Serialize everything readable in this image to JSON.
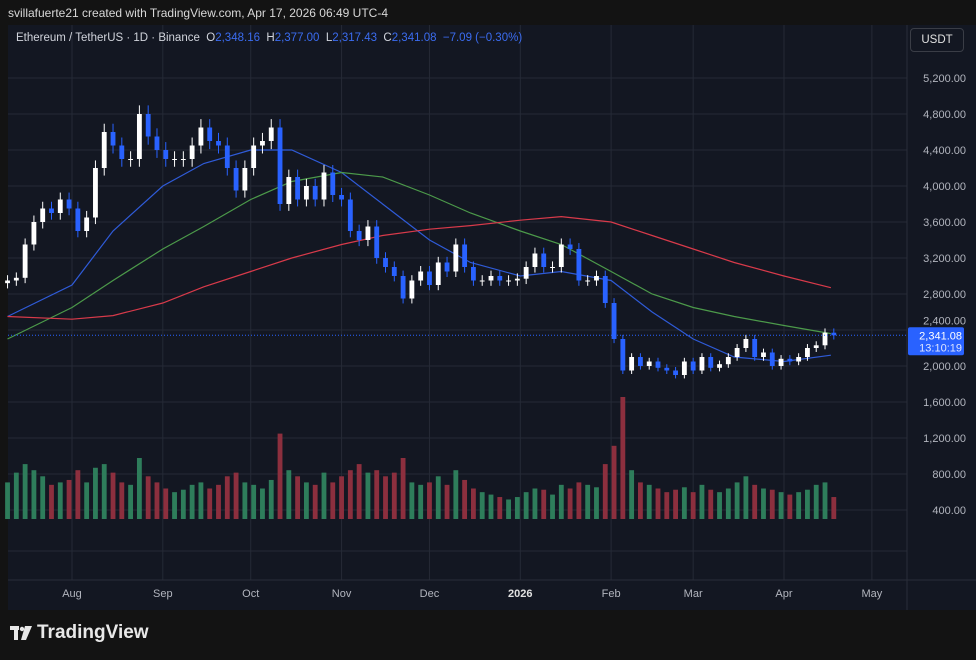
{
  "credit": "svillafuerte21 created with TradingView.com, Apr 17, 2026 06:49 UTC-4",
  "legend": {
    "symbol": "Ethereum / TetherUS · 1D · Binance",
    "o_label": "O",
    "o": "2,348.16",
    "h_label": "H",
    "h": "2,377.00",
    "l_label": "L",
    "l": "2,317.43",
    "c_label": "C",
    "c": "2,341.08",
    "change": "−7.09 (−0.30%)"
  },
  "currency_button": "USDT",
  "price_tag": {
    "price": "2,341.08",
    "countdown": "13:10:19"
  },
  "brand": "TradingView",
  "colors": {
    "up": "#ffffff",
    "down": "#2962ff",
    "ma_blue": "#2f5bd8",
    "ma_green": "#4c9a4a",
    "ma_red": "#d83a4a",
    "vol_up": "#2e7d5b",
    "vol_down": "#8c2f3e",
    "accent": "#2962ff"
  },
  "chart_data": {
    "type": "candlestick",
    "grid": true,
    "ylim": [
      400,
      5500
    ],
    "y_ticks": [
      "5,200.00",
      "4,800.00",
      "4,400.00",
      "4,000.00",
      "3,600.00",
      "3,200.00",
      "2,800.00",
      "2,400.00",
      "2,000.00",
      "1,600.00",
      "1,200.00",
      "800.00",
      "400.00"
    ],
    "y_tick_values": [
      5200,
      4800,
      4400,
      4000,
      3600,
      3200,
      2800,
      2400,
      2000,
      1600,
      1200,
      800,
      400
    ],
    "x_ticks": [
      {
        "label": "Aug",
        "date": "2025-08-01"
      },
      {
        "label": "Sep",
        "date": "2025-09-01"
      },
      {
        "label": "Oct",
        "date": "2025-10-01"
      },
      {
        "label": "Nov",
        "date": "2025-11-01"
      },
      {
        "label": "Dec",
        "date": "2025-12-01"
      },
      {
        "label": "2026",
        "date": "2026-01-01"
      },
      {
        "label": "Feb",
        "date": "2026-02-01"
      },
      {
        "label": "Mar",
        "date": "2026-03-01"
      },
      {
        "label": "Apr",
        "date": "2026-04-01"
      },
      {
        "label": "May",
        "date": "2026-05-01"
      }
    ],
    "xlim": [
      "2025-07-09",
      "2026-05-30"
    ],
    "first_date": "2025-07-10",
    "step_days": 3,
    "closes": [
      2950,
      2980,
      3350,
      3600,
      3750,
      3700,
      3850,
      3750,
      3500,
      3650,
      4200,
      4600,
      4450,
      4300,
      4300,
      4800,
      4550,
      4400,
      4300,
      4300,
      4300,
      4450,
      4650,
      4500,
      4450,
      4200,
      3950,
      4200,
      4450,
      4500,
      4650,
      3800,
      4100,
      3850,
      4000,
      3850,
      4150,
      3900,
      3850,
      3500,
      3400,
      3550,
      3200,
      3100,
      3000,
      2750,
      2950,
      3050,
      2900,
      3150,
      3050,
      3350,
      3100,
      2950,
      2950,
      3000,
      2950,
      2950,
      2970,
      3100,
      3250,
      3100,
      3100,
      3350,
      3300,
      2950,
      2950,
      3000,
      2700,
      2300,
      1950,
      2100,
      2000,
      2050,
      1980,
      1950,
      1900,
      2050,
      1950,
      2100,
      1980,
      2020,
      2100,
      2200,
      2300,
      2100,
      2150,
      2000,
      2080,
      2050,
      2100,
      2200,
      2230,
      2370,
      2341.08
    ],
    "volume_relative": [
      30,
      38,
      45,
      40,
      35,
      28,
      30,
      32,
      40,
      30,
      42,
      45,
      38,
      30,
      28,
      50,
      35,
      30,
      25,
      22,
      24,
      28,
      30,
      25,
      28,
      35,
      38,
      30,
      28,
      25,
      32,
      70,
      40,
      35,
      30,
      28,
      38,
      30,
      35,
      40,
      45,
      38,
      40,
      35,
      38,
      50,
      30,
      28,
      30,
      35,
      28,
      40,
      32,
      25,
      22,
      20,
      18,
      16,
      18,
      22,
      25,
      24,
      20,
      28,
      25,
      30,
      28,
      26,
      45,
      60,
      100,
      40,
      30,
      28,
      25,
      22,
      24,
      26,
      22,
      28,
      24,
      22,
      25,
      30,
      35,
      28,
      25,
      24,
      22,
      20,
      22,
      24,
      28,
      30,
      18
    ],
    "series": [
      {
        "label": "MA-blue",
        "dates": [
          "2025-07-10",
          "2025-08-01",
          "2025-08-15",
          "2025-09-01",
          "2025-09-15",
          "2025-10-01",
          "2025-10-15",
          "2025-11-01",
          "2025-11-15",
          "2025-12-01",
          "2025-12-15",
          "2026-01-01",
          "2026-01-15",
          "2026-02-01",
          "2026-02-15",
          "2026-03-01",
          "2026-03-15",
          "2026-04-01",
          "2026-04-17"
        ],
        "values": [
          2550,
          2900,
          3500,
          4000,
          4250,
          4400,
          4400,
          4150,
          3800,
          3400,
          3150,
          3000,
          3050,
          2950,
          2600,
          2300,
          2100,
          2050,
          2120
        ]
      },
      {
        "label": "MA-green",
        "dates": [
          "2025-07-10",
          "2025-08-01",
          "2025-08-15",
          "2025-09-01",
          "2025-09-15",
          "2025-10-01",
          "2025-10-15",
          "2025-11-01",
          "2025-11-15",
          "2025-12-01",
          "2025-12-15",
          "2026-01-01",
          "2026-01-15",
          "2026-02-01",
          "2026-02-15",
          "2026-03-01",
          "2026-03-15",
          "2026-04-01",
          "2026-04-17"
        ],
        "values": [
          2300,
          2650,
          2950,
          3300,
          3550,
          3850,
          4050,
          4150,
          4100,
          3900,
          3700,
          3500,
          3350,
          3050,
          2800,
          2650,
          2550,
          2450,
          2360
        ]
      },
      {
        "label": "MA-red",
        "dates": [
          "2025-07-10",
          "2025-08-01",
          "2025-08-15",
          "2025-09-01",
          "2025-09-15",
          "2025-10-01",
          "2025-10-15",
          "2025-11-01",
          "2025-11-15",
          "2025-12-01",
          "2025-12-15",
          "2026-01-01",
          "2026-01-15",
          "2026-02-01",
          "2026-02-15",
          "2026-03-01",
          "2026-03-15",
          "2026-04-01",
          "2026-04-17"
        ],
        "values": [
          2550,
          2520,
          2560,
          2700,
          2880,
          3050,
          3200,
          3350,
          3450,
          3520,
          3560,
          3620,
          3660,
          3600,
          3450,
          3300,
          3150,
          3000,
          2870
        ]
      }
    ]
  }
}
